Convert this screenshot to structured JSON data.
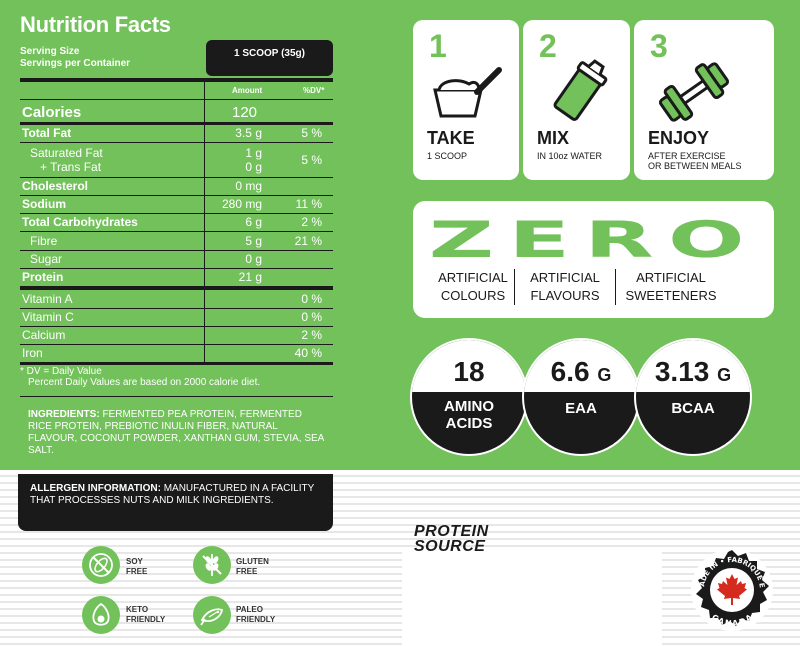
{
  "nutrition": {
    "title": "Nutrition Facts",
    "serving_size_label": "Serving Size",
    "servings_per_container_label": "Servings per Container",
    "serving_size_value": "1 SCOOP (35g)",
    "header_amount": "Amount",
    "header_dv": "%DV*",
    "calories_label": "Calories",
    "calories_value": "120",
    "rows": [
      {
        "label": "Total Fat",
        "amount": "3.5 g",
        "dv": "5 %"
      },
      {
        "label": "Saturated Fat",
        "amount": "1 g",
        "dv": "5 %"
      },
      {
        "label": "+ Trans Fat",
        "amount": "0 g",
        "dv": ""
      },
      {
        "label": "Cholesterol",
        "amount": "0 mg",
        "dv": ""
      },
      {
        "label": "Sodium",
        "amount": "280 mg",
        "dv": "11 %"
      },
      {
        "label": "Total Carbohydrates",
        "amount": "6 g",
        "dv": "2 %"
      },
      {
        "label": "Fibre",
        "amount": "5 g",
        "dv": "21 %"
      },
      {
        "label": "Sugar",
        "amount": "0 g",
        "dv": ""
      },
      {
        "label": "Protein",
        "amount": "21 g",
        "dv": ""
      }
    ],
    "vitamins": [
      {
        "label": "Vitamin A",
        "dv": "0 %"
      },
      {
        "label": "Vitamin C",
        "dv": "0 %"
      },
      {
        "label": "Calcium",
        "dv": "2 %"
      },
      {
        "label": "Iron",
        "dv": "40 %"
      }
    ],
    "footnote_line1": "* DV = Daily Value",
    "footnote_line2": "Percent Daily Values are based on 2000 calorie diet.",
    "ingredients_label": "INGREDIENTS:",
    "ingredients_text": "FERMENTED PEA PROTEIN, FERMENTED RICE PROTEIN, PREBIOTIC INULIN FIBER, NATURAL FLAVOUR, COCONUT POWDER, XANTHAN GUM, STEVIA, SEA SALT.",
    "allergen_label": "ALLERGEN INFORMATION:",
    "allergen_text": "MANUFACTURED IN A FACILITY THAT PROCESSES NUTS AND MILK INGREDIENTS."
  },
  "badges": [
    {
      "line1": "SOY",
      "line2": "FREE",
      "icon": "soy-free-icon"
    },
    {
      "line1": "GLUTEN",
      "line2": "FREE",
      "icon": "gluten-free-icon"
    },
    {
      "line1": "KETO",
      "line2": "FRIENDLY",
      "icon": "avocado-icon"
    },
    {
      "line1": "PALEO",
      "line2": "FRIENDLY",
      "icon": "fish-icon"
    }
  ],
  "steps": [
    {
      "number": "1",
      "title": "TAKE",
      "sub1": "1 SCOOP",
      "sub2": "",
      "icon": "scoop-icon"
    },
    {
      "number": "2",
      "title": "MIX",
      "sub1": "IN 10oz WATER",
      "sub2": "",
      "icon": "shaker-icon"
    },
    {
      "number": "3",
      "title": "ENJOY",
      "sub1": "AFTER EXERCISE",
      "sub2": "OR BETWEEN MEALS",
      "icon": "dumbbell-icon"
    }
  ],
  "zero": {
    "word": "ZERO",
    "items": [
      {
        "line1": "ARTIFICIAL",
        "line2": "COLOURS"
      },
      {
        "line1": "ARTIFICIAL",
        "line2": "FLAVOURS"
      },
      {
        "line1": "ARTIFICIAL",
        "line2": "SWEETENERS"
      }
    ]
  },
  "stats": [
    {
      "value": "18",
      "unit": "",
      "label1": "AMINO",
      "label2": "ACIDS"
    },
    {
      "value": "6.6",
      "unit": "G",
      "label1": "EAA",
      "label2": ""
    },
    {
      "value": "3.13",
      "unit": "G",
      "label1": "BCAA",
      "label2": ""
    }
  ],
  "brand": {
    "line1": "PROTEIN",
    "line2": "SOURCE"
  },
  "seal": {
    "top_text": "MADE IN • FABRIQUÉ EN",
    "bottom_text": "CANADA"
  },
  "colors": {
    "green": "#72c15a",
    "black": "#1a1a1a",
    "white": "#ffffff",
    "seal_red": "#d52b1e"
  }
}
